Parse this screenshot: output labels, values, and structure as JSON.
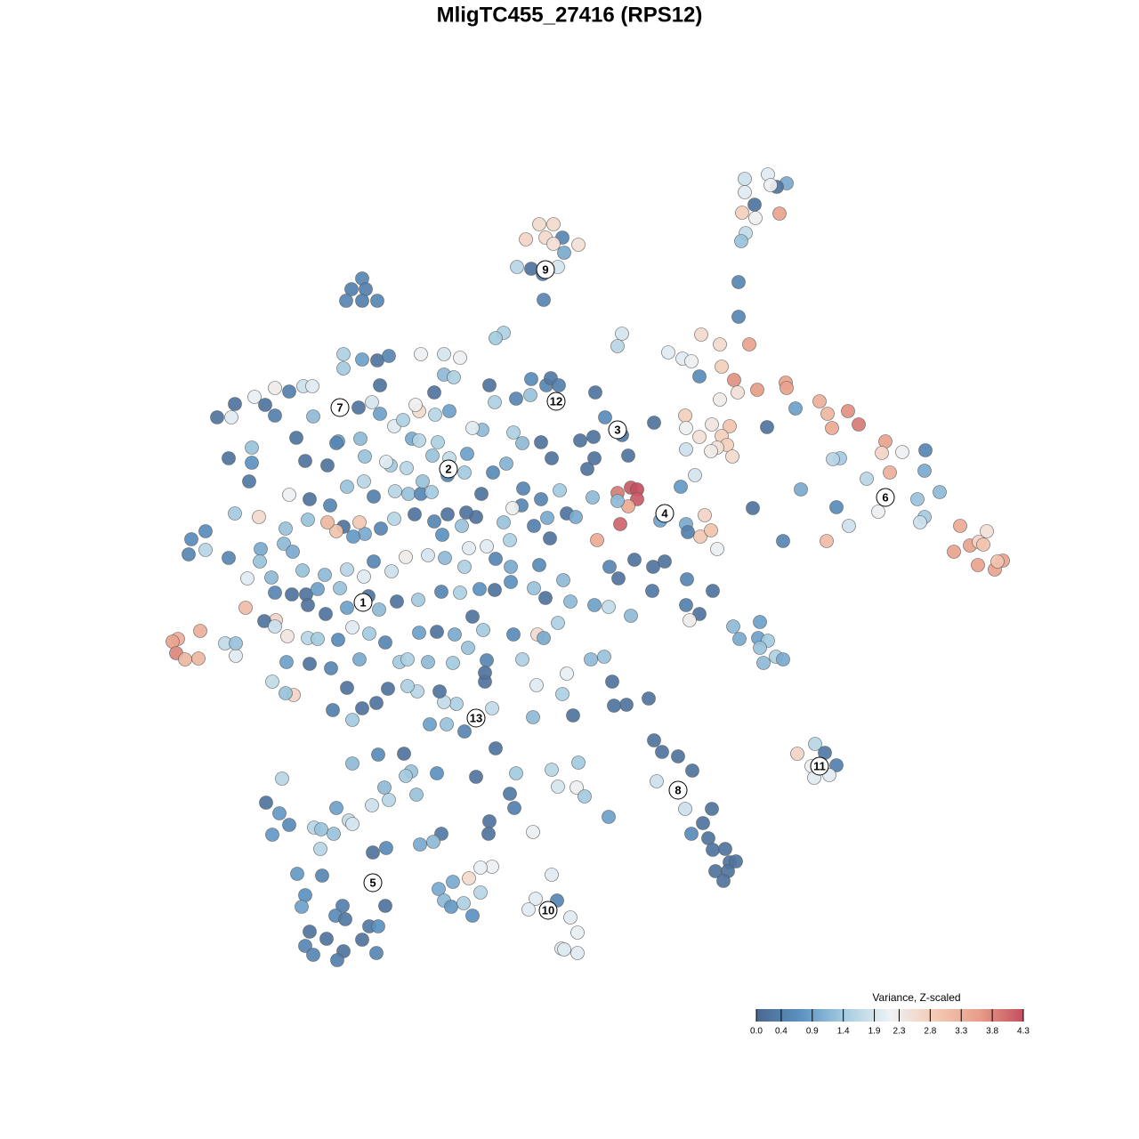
{
  "chart_data": {
    "type": "scatter",
    "title": "MligTC455_27416 (RPS12)",
    "xlim": [
      0,
      128
    ],
    "ylim": [
      128,
      0
    ],
    "x": [
      60.6,
      62.2,
      61.3,
      63.2,
      59.1,
      65.0,
      62.2,
      63.4,
      58.1,
      59.7,
      61.0,
      62.7,
      61.1,
      83.7,
      86.3,
      88.4,
      87.3,
      86.6,
      83.7,
      84.8,
      83.4,
      84.9,
      87.6,
      83.8,
      83.3,
      83.0,
      83.0,
      40.7,
      39.5,
      41.1,
      38.9,
      40.7,
      42.4,
      78.8,
      80.9,
      84.2,
      75.1,
      76.7,
      77.7,
      81.1,
      82.5,
      85.1,
      88.3,
      88.4,
      78.6,
      82.9,
      80.9,
      92.1,
      89.4,
      93.0,
      95.3,
      96.5,
      93.5,
      86.2,
      77.0,
      80.0,
      82.0,
      77.1,
      78.6,
      81.1,
      81.7,
      80.6,
      79.9,
      82.3,
      77.1,
      78.1,
      99.5,
      101.4,
      99.1,
      104.0,
      94.4,
      93.6,
      97.4,
      100.0,
      103.9,
      98.7,
      103.1,
      105.6,
      90.0,
      94.0,
      84.6,
      79.2,
      78.7,
      79.9,
      80.6,
      95.4,
      92.9,
      88.0,
      103.9,
      103.4,
      107.9,
      110.9,
      109.0,
      110.0,
      110.5,
      107.2,
      112.7,
      111.8,
      109.9,
      112.1,
      69.4,
      70.9,
      71.6,
      71.6,
      70.6,
      69.7,
      67.1,
      69.4,
      74.2,
      76.5,
      77.1,
      77.3,
      20.0,
      19.4,
      19.8,
      20.8,
      22.3,
      22.5,
      25.3,
      26.5,
      26.5,
      27.6,
      31.0,
      29.1,
      32.3,
      24.4,
      26.0,
      26.4,
      28.3,
      28.6,
      29.8,
      30.9,
      30.9,
      32.5,
      34.1,
      35.1,
      33.3,
      34.3,
      36.8,
      35.2,
      38.6,
      38.6,
      40.7,
      42.4,
      43.7,
      42.7,
      40.3,
      41.8,
      42.7,
      44.3,
      45.3,
      47.1,
      46.7,
      48.9,
      50.5,
      48.8,
      49.9,
      51.0,
      51.7,
      49.9,
      47.3,
      55.0,
      55.6,
      58.0,
      59.7,
      59.6,
      61.4,
      61.9,
      62.8,
      66.9,
      68.0,
      69.9,
      73.5,
      70.6,
      65.2,
      66.7,
      66.0,
      66.8,
      62.0,
      60.8,
      58.7,
      57.7,
      54.2,
      53.1,
      52.5,
      50.5,
      48.6,
      46.3,
      47.1,
      49.2,
      45.7,
      43.9,
      43.4,
      41.0,
      40.5,
      38.0,
      37.8,
      25.7,
      28.3,
      28.0,
      32.5,
      34.8,
      37.1,
      39.0,
      40.9,
      42.0,
      44.4,
      45.9,
      47.3,
      48.5,
      47.5,
      50.3,
      52.2,
      54.1,
      55.4,
      56.9,
      58.8,
      58.6,
      60.8,
      62.9,
      66.6,
      63.7,
      64.7,
      61.5,
      60.0,
      61.8,
      57.6,
      56.6,
      54.7,
      57.3,
      53.5,
      52.4,
      50.3,
      51.9,
      49.7,
      48.8,
      46.6,
      44.3,
      42.8,
      41.0,
      39.7,
      40.4,
      38.6,
      37.8,
      36.8,
      34.6,
      32.1,
      31.9,
      29.3,
      26.4,
      23.1,
      21.5,
      21.2,
      23.1,
      25.7,
      29.2,
      30.5,
      27.8,
      30.9,
      32.8,
      34.4,
      35.7,
      38.2,
      34.6,
      36.6,
      39.0,
      40.8,
      41.4,
      42.6,
      44.6,
      47.0,
      49.6,
      51.7,
      53.9,
      55.6,
      57.4,
      60.0,
      61.3,
      63.3,
      64.1,
      66.8,
      68.4,
      70.9,
      68.5,
      69.5,
      71.3,
      73.4,
      74.7,
      77.2,
      80.1,
      77.1,
      78.6,
      77.5,
      73.3,
      60.6,
      57.4,
      55.7,
      52.7,
      52.2,
      50.0,
      48.1,
      45.6,
      44.0,
      42.0,
      40.9,
      39.0,
      36.5,
      34.0,
      32.9,
      29.7,
      30.9,
      34.6,
      35.7,
      38.0,
      39.6,
      41.5,
      43.3,
      44.9,
      47.1,
      49.1,
      51.1,
      53.1,
      54.3,
      54.7,
      57.7,
      58.7,
      60.4,
      61.1,
      62.7,
      63.7,
      60.3,
      66.4,
      67.9,
      68.8,
      72.9,
      70.4,
      69.0,
      64.4,
      63.2,
      59.9,
      55.3,
      54.5,
      54.5,
      51.3,
      49.9,
      49.4,
      46.9,
      45.8,
      43.6,
      42.3,
      40.7,
      39.6,
      39.0,
      37.4,
      33.0,
      32.1,
      30.6,
      32.2,
      34.8,
      37.2,
      40.4,
      45.8,
      48.1,
      50.9,
      52.6,
      48.3,
      50.2,
      52.2,
      53.6,
      55.7,
      73.5,
      74.4,
      76.2,
      77.8,
      73.8,
      77.0,
      77.7,
      79.0,
      80.0,
      79.6,
      80.1,
      81.5,
      80.4,
      82.0,
      82.7,
      81.8,
      81.3,
      68.4,
      91.6,
      92.7,
      94.0,
      89.6,
      91.2,
      91.5,
      93.2,
      82.4,
      85.4,
      83.1,
      85.2,
      86.3,
      85.4,
      87.2,
      88.0,
      85.8,
      39.6,
      42.5,
      45.4,
      46.2,
      49.1,
      53.5,
      58.0,
      62.0,
      65.0,
      62.7,
      64.8,
      65.7,
      57.3,
      57.8,
      45.6,
      43.2,
      41.8,
      43.7,
      46.8,
      31.7,
      29.9,
      31.4,
      32.5,
      30.6,
      35.3,
      36.1,
      37.5,
      37.8,
      39.2,
      39.6,
      43.4,
      41.9,
      36.0,
      49.6,
      48.7,
      47.2,
      55.0,
      54.9,
      59.9,
      55.3,
      54.0,
      52.7,
      50.9,
      49.3,
      49.9,
      50.7,
      52.1,
      54.0,
      53.1,
      33.4,
      36.2,
      34.3,
      33.9,
      38.5,
      37.7,
      38.8,
      43.3,
      41.5,
      42.5,
      40.7,
      34.8,
      36.7,
      38.6,
      34.3,
      35.2,
      37.9,
      42.3,
      62.0,
      60.2,
      62.6,
      59.4,
      64.1,
      64.9,
      63.1,
      63.4,
      64.9,
      56.6,
      55.7,
      69.9,
      69.4
    ],
    "y": [
      25.2,
      25.2,
      26.7,
      26.7,
      26.9,
      27.5,
      27.4,
      28.4,
      30.0,
      30.2,
      30.8,
      30.0,
      33.7,
      20.1,
      19.6,
      20.6,
      21.0,
      20.8,
      21.6,
      23.0,
      23.9,
      24.5,
      24.0,
      26.2,
      27.1,
      31.7,
      35.6,
      31.3,
      32.5,
      32.5,
      33.8,
      33.8,
      33.8,
      37.6,
      38.7,
      38.7,
      39.6,
      40.3,
      40.6,
      41.2,
      42.7,
      43.8,
      43.0,
      43.6,
      42.3,
      44.1,
      44.9,
      45.1,
      45.9,
      46.5,
      46.2,
      47.7,
      48.1,
      48.0,
      46.7,
      47.7,
      47.9,
      48.1,
      49.1,
      49.0,
      50.0,
      50.3,
      50.7,
      51.3,
      50.5,
      53.4,
      49.6,
      50.8,
      50.9,
      50.6,
      51.5,
      51.6,
      53.8,
      53.1,
      52.9,
      57.5,
      56.1,
      55.3,
      55.0,
      57.0,
      57.1,
      57.9,
      60.3,
      59.6,
      61.7,
      59.1,
      60.8,
      60.8,
      58.1,
      58.7,
      59.1,
      59.7,
      61.3,
      60.9,
      61.2,
      62.0,
      63.0,
      64.0,
      63.5,
      63.1,
      55.4,
      54.8,
      55.0,
      56.1,
      56.9,
      58.9,
      60.7,
      56.3,
      58.5,
      54.7,
      58.9,
      59.8,
      71.8,
      72.1,
      73.4,
      74.1,
      74.0,
      70.9,
      72.3,
      73.7,
      72.3,
      68.3,
      69.7,
      58.1,
      71.5,
      46.9,
      46.9,
      45.4,
      50.3,
      44.6,
      45.5,
      46.7,
      43.6,
      44.0,
      43.4,
      43.4,
      49.2,
      51.8,
      52.3,
      46.8,
      41.4,
      39.8,
      40.4,
      40.5,
      40.0,
      43.3,
      45.8,
      45.2,
      46.5,
      47.9,
      47.2,
      46.2,
      45.5,
      46.6,
      46.2,
      44.1,
      42.1,
      42.4,
      40.2,
      39.8,
      39.8,
      43.3,
      45.2,
      44.8,
      42.6,
      44.4,
      43.3,
      42.5,
      43.3,
      44.1,
      46.9,
      48.9,
      47.5,
      51.2,
      49.5,
      49.1,
      52.7,
      51.5,
      51.5,
      49.7,
      49.8,
      48.6,
      48.3,
      48.1,
      51.0,
      51.5,
      51.2,
      49.3,
      49.5,
      49.7,
      52.6,
      52.3,
      51.9,
      51.3,
      49.3,
      49.6,
      49.8,
      51.5,
      52.0,
      54.1,
      55.6,
      56.1,
      56.8,
      54.7,
      54.1,
      55.8,
      55.2,
      55.5,
      55.5,
      55.3,
      54.1,
      53.4,
      53.1,
      55.5,
      53.1,
      52.1,
      54.9,
      56.8,
      56.1,
      55.1,
      55.9,
      57.7,
      58.1,
      58.2,
      59.1,
      60.5,
      57.1,
      58.7,
      61.4,
      60.7,
      58.1,
      57.6,
      57.8,
      59.1,
      60.1,
      58.6,
      57.8,
      58.3,
      59.4,
      60.0,
      60.3,
      58.7,
      59.2,
      59.7,
      58.7,
      58.4,
      59.4,
      61.1,
      61.7,
      57.7,
      59.7,
      60.6,
      62.3,
      61.8,
      62.7,
      63.1,
      64.9,
      65.0,
      66.6,
      66.8,
      66.8,
      66.2,
      66.1,
      68.0,
      69.0,
      68.3,
      67.7,
      67.0,
      68.5,
      67.6,
      67.4,
      66.5,
      66.6,
      66.2,
      66.3,
      65.4,
      66.1,
      67.2,
      65.2,
      67.6,
      68.0,
      68.2,
      69.2,
      63.7,
      65.0,
      62.9,
      63.7,
      63.1,
      65.1,
      66.4,
      68.0,
      69.0,
      69.7,
      66.4,
      63.5,
      63.7,
      62.8,
      61.6,
      63.7,
      62.7,
      62.4,
      62.6,
      64.2,
      63.1,
      64.8,
      64.0,
      64.6,
      64.1,
      62.0,
      69.8,
      70.4,
      71.7,
      71.8,
      71.9,
      70.5,
      71.2,
      72.2,
      74.4,
      71.1,
      71.0,
      71.3,
      69.3,
      70.8,
      74.2,
      71.3,
      74.1,
      71.3,
      71.7,
      70.0,
      75.7,
      77.0,
      74.1,
      73.8,
      76.6,
      78.5,
      79.2,
      79.3,
      80.4,
      78.0,
      80.6,
      79.6,
      76.6,
      75.6,
      79.1,
      78.9,
      77.7,
      77.7,
      77.1,
      77.4,
      79.0,
      79.6,
      80.9,
      77.3,
      79.8,
      78.1,
      77.9,
      76.6,
      74.4,
      74.6,
      75.1,
      74.1,
      74.1,
      74.4,
      74.5,
      72.8,
      81.4,
      81.4,
      82.2,
      80.7,
      84.1,
      83.2,
      84.5,
      85.0,
      86.6,
      87.8,
      90.9,
      93.7,
      92.5,
      90.9,
      94.2,
      95.5,
      95.4,
      97.9,
      96.9,
      96.8,
      97.9,
      99.0,
      91.8,
      83.6,
      84.6,
      86.0,
      84.7,
      86.1,
      87.4,
      87.1,
      70.4,
      69.9,
      71.8,
      71.7,
      72.0,
      72.8,
      73.8,
      74.1,
      74.5,
      85.8,
      84.8,
      84.7,
      86.7,
      86.9,
      87.3,
      86.9,
      86.5,
      85.7,
      88.4,
      88.5,
      89.5,
      89.2,
      90.8,
      87.2,
      88.5,
      90.5,
      89.9,
      89.3,
      87.5,
      90.2,
      91.4,
      92.7,
      93.8,
      93.0,
      93.2,
      93.7,
      90.8,
      92.2,
      92.6,
      95.3,
      95.8,
      95.4,
      93.7,
      94.6,
      94.9,
      92.3,
      93.7,
      93.5,
      97.4,
      97.5,
      98.7,
      99.1,
      99.9,
      101.2,
      101.9,
      101.5,
      100.3,
      102.9,
      98.2,
      98.4,
      100.6,
      101.9,
      101.8,
      102.9,
      103.3,
      101.8,
      104.1,
      104.1,
      105.6,
      104.7,
      105.5,
      106.9,
      106.3,
      107.3,
      107.9,
      107.1,
      98.3,
      101.0,
      101.2,
      102.2,
      103.1,
      104.8,
      106.6,
      106.7,
      107.1,
      37.4,
      38.0,
      37.5,
      38.9
    ],
    "values": [
      2.6,
      2.6,
      2.6,
      0.5,
      2.7,
      2.5,
      2.5,
      1.0,
      1.6,
      0.2,
      0.4,
      1.9,
      0.5,
      1.8,
      2.0,
      1.0,
      0.2,
      2.2,
      2.0,
      0.2,
      2.8,
      2.2,
      3.5,
      1.7,
      1.3,
      0.5,
      0.5,
      0.5,
      0.4,
      0.4,
      0.5,
      0.4,
      0.5,
      2.6,
      2.6,
      3.5,
      2.0,
      2.0,
      2.2,
      2.8,
      3.7,
      3.6,
      3.5,
      3.5,
      0.6,
      2.5,
      2.3,
      3.3,
      0.9,
      3.2,
      3.7,
      3.9,
      3.4,
      0.2,
      2.8,
      2.4,
      3.0,
      2.2,
      2.5,
      2.8,
      2.8,
      2.5,
      2.3,
      2.6,
      1.8,
      1.9,
      3.5,
      2.2,
      2.7,
      0.5,
      1.4,
      1.6,
      1.6,
      3.3,
      1.0,
      2.2,
      1.3,
      1.2,
      1.0,
      0.6,
      0.2,
      2.7,
      2.9,
      3.0,
      2.1,
      1.8,
      3.1,
      0.5,
      1.4,
      1.8,
      3.4,
      2.5,
      3.5,
      2.7,
      3.0,
      3.5,
      3.5,
      3.5,
      3.5,
      3.0,
      3.9,
      4.2,
      4.3,
      4.2,
      3.4,
      4.1,
      3.4,
      1.2,
      0.9,
      0.8,
      1.0,
      0.4,
      3.3,
      3.5,
      3.8,
      3.2,
      3.2,
      3.3,
      1.7,
      2.0,
      1.3,
      3.1,
      2.7,
      2.6,
      2.4,
      0.2,
      2.0,
      0.2,
      1.3,
      2.1,
      0.2,
      0.4,
      2.3,
      0.4,
      1.8,
      2.0,
      0.2,
      0.2,
      0.2,
      1.2,
      1.4,
      1.5,
      0.9,
      0.2,
      0.5,
      0.2,
      0.2,
      1.9,
      0.9,
      2.0,
      1.5,
      2.6,
      2.2,
      1.6,
      0.9,
      0.2,
      1.2,
      1.5,
      2.2,
      1.9,
      2.2,
      0.2,
      1.5,
      0.5,
      0.6,
      1.3,
      0.5,
      0.3,
      0.4,
      0.2,
      0.6,
      0.3,
      0.2,
      0.2,
      0.2,
      0.2,
      0.2,
      0.2,
      0.2,
      0.2,
      1.2,
      1.5,
      1.2,
      2.0,
      0.9,
      1.7,
      1.3,
      1.0,
      1.6,
      1.5,
      1.6,
      1.4,
      2.0,
      1.3,
      1.2,
      0.9,
      0.5,
      0.2,
      0.7,
      0.3,
      2.2,
      0.2,
      0.5,
      1.3,
      1.6,
      0.4,
      1.6,
      1.3,
      0.5,
      1.4,
      1.3,
      0.5,
      1.4,
      0.2,
      0.6,
      1.1,
      0.5,
      0.5,
      0.5,
      1.4,
      1.2,
      0.2,
      1.0,
      1.0,
      0.4,
      0.2,
      2.2,
      1.3,
      2.0,
      1.5,
      0.2,
      0.2,
      0.2,
      1.3,
      0.7,
      0.5,
      0.2,
      1.6,
      0.5,
      1.0,
      0.8,
      2.9,
      0.2,
      3.0,
      3.2,
      1.3,
      1.3,
      1.2,
      1.0,
      1.4,
      0.6,
      0.6,
      0.5,
      1.6,
      0.5,
      1.3,
      1.2,
      2.0,
      0.5,
      0.2,
      0.2,
      0.9,
      1.3,
      0.2,
      0.2,
      0.9,
      1.5,
      0.2,
      1.2,
      0.2,
      1.4,
      0.5,
      1.5,
      0.7,
      0.2,
      0.7,
      1.3,
      0.2,
      1.2,
      1.2,
      0.9,
      1.7,
      1.2,
      0.5,
      0.2,
      0.2,
      0.2,
      0.2,
      0.5,
      0.2,
      0.4,
      0.2,
      2.3,
      0.3,
      0.6,
      1.0,
      0.5,
      2.0,
      1.5,
      1.2,
      1.9,
      2.3,
      1.8,
      0.5,
      2.0,
      1.6,
      1.2,
      1.3,
      1.0,
      0.2,
      1.8,
      1.6,
      1.4,
      0.6,
      2.0,
      1.4,
      0.5,
      1.4,
      0.9,
      0.2,
      1.0,
      0.2,
      1.4,
      0.5,
      0.6,
      1.5,
      2.6,
      1.0,
      1.5,
      2.1,
      2.0,
      1.2,
      1.3,
      0.2,
      0.2,
      0.2,
      0.2,
      0.2,
      1.5,
      1.2,
      1.7,
      0.2,
      0.2,
      1.5,
      1.7,
      0.2,
      1.6,
      1.5,
      0.2,
      0.2,
      0.2,
      1.4,
      0.2,
      0.4,
      2.7,
      1.3,
      1.7,
      0.9,
      0.2,
      0.5,
      1.0,
      1.5,
      1.2,
      1.4,
      1.3,
      0.9,
      1.3,
      0.5,
      0.5,
      0.2,
      0.2,
      0.2,
      0.2,
      0.2,
      1.8,
      1.8,
      0.6,
      0.2,
      0.2,
      0.2,
      0.2,
      0.2,
      0.2,
      0.2,
      0.2,
      0.2,
      0.2,
      0.9,
      1.6,
      0.3,
      0.4,
      2.7,
      2.2,
      2.0,
      2.0,
      1.2,
      0.9,
      1.0,
      0.9,
      1.4,
      1.3,
      1.5,
      1.0,
      1.2,
      1.2,
      0.6,
      0.2,
      1.3,
      0.7,
      0.2,
      1.4,
      1.6,
      1.4,
      1.9,
      2.2,
      1.4,
      0.3,
      0.4,
      1.4,
      1.2,
      1.8,
      1.6,
      1.3,
      1.6,
      0.2,
      0.8,
      0.6,
      0.8,
      1.6,
      1.3,
      1.3,
      0.9,
      1.7,
      1.9,
      0.6,
      0.2,
      1.6,
      0.3,
      1.2,
      1.0,
      0.2,
      0.2,
      2.1,
      2.2,
      2.1,
      2.6,
      1.0,
      1.0,
      1.2,
      0.8,
      1.5,
      1.6,
      0.7,
      0.8,
      0.5,
      0.7,
      0.9,
      0.4,
      0.6,
      0.3,
      0.2,
      0.3,
      0.7,
      0.2,
      0.2,
      0.2,
      0.2,
      0.5,
      0.5,
      0.4,
      0.5,
      2.0,
      2.0,
      0.5,
      2.0,
      2.0,
      2.1,
      2.0,
      2.0,
      2.0,
      1.5,
      1.4,
      1.9,
      1.6
    ],
    "cluster_labels": [
      {
        "text": "1",
        "x": 40.8,
        "y": 67.7
      },
      {
        "text": "2",
        "x": 50.4,
        "y": 52.7
      },
      {
        "text": "3",
        "x": 69.4,
        "y": 48.3
      },
      {
        "text": "4",
        "x": 74.7,
        "y": 57.7
      },
      {
        "text": "5",
        "x": 41.9,
        "y": 99.2
      },
      {
        "text": "6",
        "x": 99.5,
        "y": 55.9
      },
      {
        "text": "7",
        "x": 38.2,
        "y": 45.8
      },
      {
        "text": "8",
        "x": 76.2,
        "y": 88.8
      },
      {
        "text": "9",
        "x": 61.3,
        "y": 30.3
      },
      {
        "text": "10",
        "x": 61.6,
        "y": 102.3
      },
      {
        "text": "11",
        "x": 92.1,
        "y": 86.1
      },
      {
        "text": "12",
        "x": 62.5,
        "y": 45.1
      },
      {
        "text": "13",
        "x": 53.5,
        "y": 80.7
      }
    ],
    "colorbar": {
      "title": "Variance, Z-scaled",
      "lim": [
        0,
        4.3
      ],
      "ticks": [
        {
          "value": 0,
          "label": "0.0"
        },
        0.4,
        0.9,
        1.4,
        1.9,
        2.3,
        2.8,
        3.3,
        3.8,
        4.3
      ],
      "colormap": [
        "#4a6890",
        "#5b92c2",
        "#a6cde1",
        "#eef2f5",
        "#f4cbb6",
        "#e89e88",
        "#c44f60"
      ]
    }
  }
}
